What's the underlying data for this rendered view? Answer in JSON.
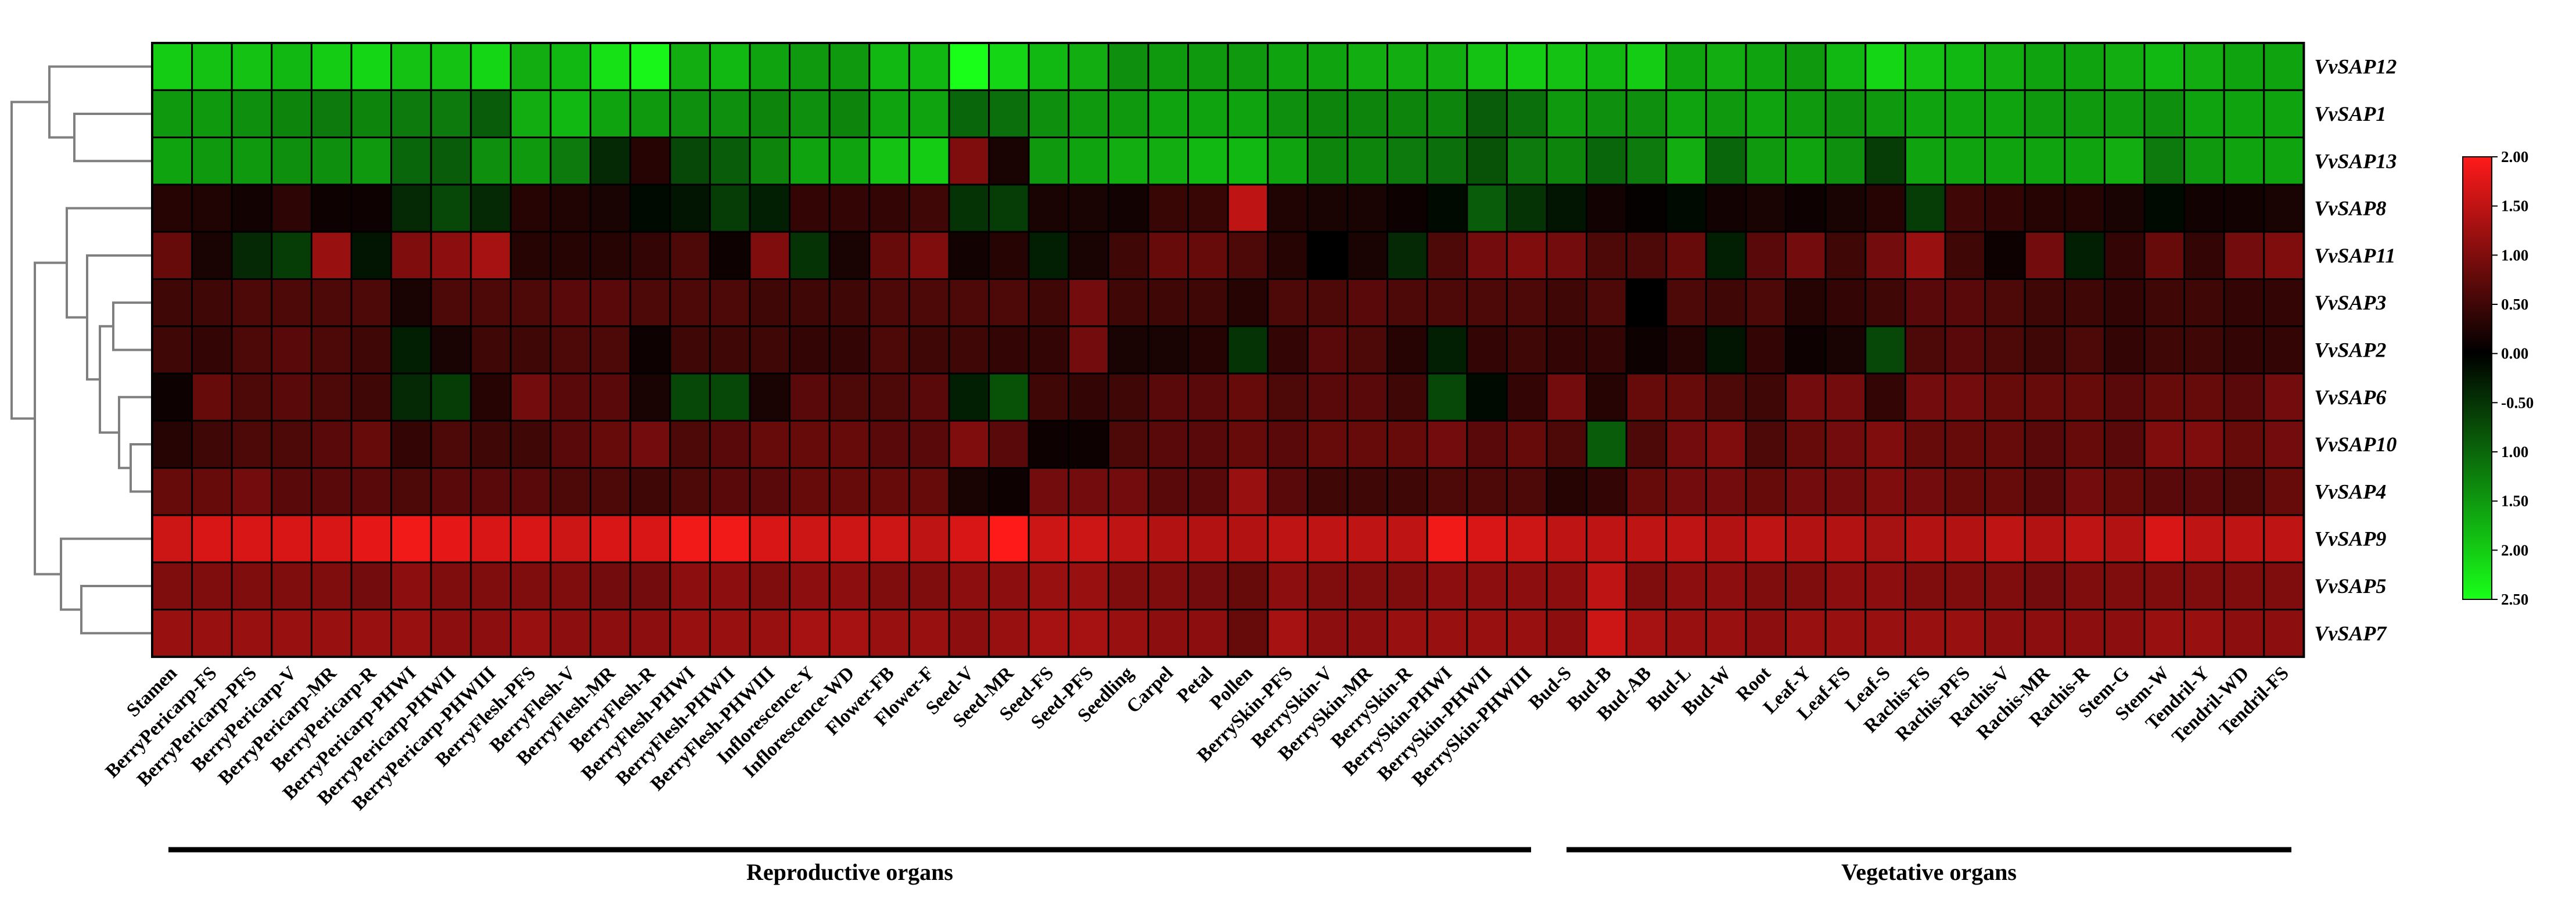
{
  "chart_data": {
    "type": "heatmap",
    "title": "",
    "rows": [
      "VvSAP12",
      "VvSAP1",
      "VvSAP13",
      "VvSAP8",
      "VvSAP11",
      "VvSAP3",
      "VvSAP2",
      "VvSAP6",
      "VvSAP10",
      "VvSAP4",
      "VvSAP9",
      "VvSAP5",
      "VvSAP7"
    ],
    "columns": [
      "Stamen",
      "BerryPericarp-FS",
      "BerryPericarp-PFS",
      "BerryPericarp-V",
      "BerryPericarp-MR",
      "BerryPericarp-R",
      "BerryPericarp-PHWI",
      "BerryPericarp-PHWII",
      "BerryPericarp-PHWIII",
      "BerryFlesh-PFS",
      "BerryFlesh-V",
      "BerryFlesh-MR",
      "BerryFlesh-R",
      "BerryFlesh-PHWI",
      "BerryFlesh-PHWII",
      "BerryFlesh-PHWIII",
      "Inflorescence-Y",
      "Inflorescence-WD",
      "Flower-FB",
      "Flower-F",
      "Seed-V",
      "Seed-MR",
      "Seed-FS",
      "Seed-PFS",
      "Seedling",
      "Carpel",
      "Petal",
      "Pollen",
      "BerrySkin-PFS",
      "BerrySkin-V",
      "BerrySkin-MR",
      "BerrySkin-R",
      "BerrySkin-PHWI",
      "BerrySkin-PHWII",
      "BerrySkin-PHWIII",
      "Bud-S",
      "Bud-B",
      "Bud-AB",
      "Bud-L",
      "Bud-W",
      "Root",
      "Leaf-Y",
      "Leaf-FS",
      "Leaf-S",
      "Rachis-FS",
      "Rachis-PFS",
      "Rachis-V",
      "Rachis-MR",
      "Rachis-R",
      "Stem-G",
      "Stem-W",
      "Tendril-Y",
      "Tendril-WD",
      "Tendril-FS"
    ],
    "values": [
      [
        -2.0,
        -1.9,
        -1.9,
        -1.8,
        -2.0,
        -2.1,
        -1.9,
        -1.9,
        -2.1,
        -1.7,
        -1.8,
        -2.2,
        -2.4,
        -1.7,
        -1.8,
        -1.6,
        -1.5,
        -1.5,
        -1.8,
        -1.8,
        -2.5,
        -2.1,
        -1.8,
        -1.7,
        -1.4,
        -1.5,
        -1.5,
        -1.5,
        -1.6,
        -1.6,
        -1.7,
        -1.7,
        -1.7,
        -1.9,
        -2.0,
        -1.9,
        -1.8,
        -2.0,
        -1.6,
        -1.7,
        -1.6,
        -1.5,
        -1.8,
        -2.1,
        -1.9,
        -1.8,
        -1.7,
        -1.6,
        -1.6,
        -1.7,
        -1.8,
        -1.7,
        -1.6,
        -1.6
      ],
      [
        -1.5,
        -1.5,
        -1.4,
        -1.3,
        -1.2,
        -1.3,
        -1.2,
        -1.2,
        -0.9,
        -1.7,
        -1.8,
        -1.6,
        -1.5,
        -1.4,
        -1.4,
        -1.3,
        -1.4,
        -1.3,
        -1.6,
        -1.6,
        -1.0,
        -1.1,
        -1.4,
        -1.5,
        -1.5,
        -1.6,
        -1.6,
        -1.6,
        -1.4,
        -1.3,
        -1.3,
        -1.3,
        -1.3,
        -0.9,
        -1.1,
        -1.5,
        -1.4,
        -1.4,
        -1.6,
        -1.5,
        -1.6,
        -1.5,
        -1.4,
        -1.5,
        -1.6,
        -1.6,
        -1.6,
        -1.5,
        -1.5,
        -1.5,
        -1.4,
        -1.6,
        -1.6,
        -1.6
      ],
      [
        -1.6,
        -1.5,
        -1.5,
        -1.4,
        -1.4,
        -1.5,
        -1.0,
        -0.9,
        -1.4,
        -1.5,
        -1.2,
        -0.4,
        0.3,
        -0.7,
        -0.9,
        -1.3,
        -1.6,
        -1.6,
        -1.9,
        -2.0,
        1.0,
        0.2,
        -1.5,
        -1.6,
        -1.7,
        -1.7,
        -1.8,
        -1.8,
        -1.6,
        -1.3,
        -1.3,
        -1.2,
        -1.1,
        -0.8,
        -1.2,
        -1.3,
        -1.0,
        -1.2,
        -1.7,
        -1.0,
        -1.5,
        -1.6,
        -1.4,
        -0.6,
        -1.6,
        -1.6,
        -1.6,
        -1.6,
        -1.6,
        -1.7,
        -1.2,
        -1.5,
        -1.6,
        -1.6
      ],
      [
        0.3,
        0.25,
        0.15,
        0.35,
        0.1,
        0.1,
        -0.4,
        -0.7,
        -0.4,
        0.3,
        0.25,
        0.2,
        -0.1,
        -0.2,
        -0.6,
        -0.3,
        0.4,
        0.4,
        0.4,
        0.5,
        -0.5,
        -0.6,
        0.2,
        0.2,
        0.15,
        0.45,
        0.45,
        1.5,
        0.25,
        0.2,
        0.2,
        0.1,
        -0.1,
        -0.9,
        -0.5,
        -0.2,
        0.15,
        0.05,
        -0.1,
        0.15,
        0.2,
        0.1,
        0.2,
        0.3,
        -0.6,
        0.5,
        0.4,
        0.3,
        0.3,
        0.2,
        -0.1,
        0.15,
        0.15,
        0.2
      ],
      [
        0.8,
        0.2,
        -0.4,
        -0.6,
        1.2,
        -0.2,
        1.0,
        1.1,
        1.3,
        0.3,
        0.3,
        0.3,
        0.4,
        0.6,
        0.1,
        1.0,
        -0.5,
        0.2,
        0.8,
        1.0,
        0.15,
        0.3,
        -0.3,
        0.2,
        0.5,
        0.8,
        0.8,
        0.6,
        0.3,
        0.0,
        0.2,
        -0.4,
        0.6,
        0.9,
        1.0,
        0.9,
        0.6,
        0.6,
        0.8,
        -0.3,
        0.7,
        0.9,
        0.5,
        0.9,
        1.2,
        0.5,
        0.1,
        0.9,
        -0.3,
        0.4,
        0.8,
        0.4,
        0.9,
        1.0
      ],
      [
        0.5,
        0.5,
        0.6,
        0.6,
        0.6,
        0.6,
        0.2,
        0.6,
        0.6,
        0.6,
        0.7,
        0.7,
        0.6,
        0.6,
        0.6,
        0.5,
        0.5,
        0.5,
        0.6,
        0.6,
        0.6,
        0.6,
        0.5,
        0.9,
        0.5,
        0.5,
        0.5,
        0.3,
        0.6,
        0.6,
        0.7,
        0.6,
        0.6,
        0.6,
        0.6,
        0.5,
        0.6,
        0.0,
        0.6,
        0.5,
        0.6,
        0.3,
        0.4,
        0.5,
        0.7,
        0.7,
        0.6,
        0.5,
        0.5,
        0.4,
        0.5,
        0.5,
        0.4,
        0.4
      ],
      [
        0.5,
        0.4,
        0.6,
        0.7,
        0.6,
        0.5,
        -0.3,
        0.2,
        0.5,
        0.5,
        0.6,
        0.6,
        0.1,
        0.5,
        0.5,
        0.5,
        0.4,
        0.4,
        0.6,
        0.5,
        0.5,
        0.4,
        0.4,
        0.9,
        0.2,
        0.2,
        0.3,
        -0.5,
        0.4,
        0.7,
        0.6,
        0.3,
        -0.3,
        0.4,
        0.5,
        0.4,
        0.4,
        0.1,
        0.3,
        -0.2,
        0.4,
        0.1,
        0.2,
        -0.7,
        0.6,
        0.7,
        0.6,
        0.5,
        0.6,
        0.4,
        0.5,
        0.5,
        0.4,
        0.4
      ],
      [
        0.1,
        0.8,
        0.6,
        0.7,
        0.6,
        0.5,
        -0.4,
        -0.6,
        0.3,
        0.9,
        0.7,
        0.7,
        0.2,
        -0.7,
        -0.7,
        0.2,
        0.7,
        0.6,
        0.6,
        0.7,
        -0.3,
        -0.8,
        0.5,
        0.4,
        0.5,
        0.7,
        0.7,
        0.8,
        0.6,
        0.7,
        0.7,
        0.5,
        -0.7,
        -0.1,
        0.4,
        0.9,
        0.3,
        0.8,
        0.8,
        0.6,
        0.5,
        0.9,
        0.9,
        0.4,
        0.9,
        0.9,
        0.8,
        0.8,
        0.8,
        0.7,
        0.8,
        0.8,
        0.7,
        0.9
      ],
      [
        0.3,
        0.5,
        0.6,
        0.6,
        0.7,
        0.8,
        0.4,
        0.6,
        0.5,
        0.5,
        0.7,
        0.8,
        0.9,
        0.6,
        0.7,
        0.8,
        0.8,
        0.8,
        0.7,
        0.7,
        1.0,
        0.7,
        0.1,
        0.1,
        0.6,
        0.7,
        0.7,
        0.8,
        0.7,
        0.8,
        0.8,
        0.8,
        0.9,
        0.7,
        0.8,
        0.6,
        -0.9,
        0.6,
        0.9,
        1.0,
        0.6,
        0.8,
        0.9,
        1.0,
        0.8,
        0.8,
        0.8,
        0.7,
        0.8,
        0.7,
        1.0,
        1.0,
        0.8,
        0.9
      ],
      [
        0.8,
        0.8,
        0.9,
        0.7,
        0.7,
        0.7,
        0.6,
        0.7,
        0.7,
        0.7,
        0.6,
        0.6,
        0.5,
        0.6,
        0.7,
        0.7,
        0.8,
        0.8,
        0.8,
        0.8,
        0.2,
        0.1,
        0.9,
        0.9,
        0.9,
        0.7,
        0.7,
        1.2,
        0.7,
        0.5,
        0.5,
        0.5,
        0.6,
        0.6,
        0.6,
        0.3,
        0.4,
        0.8,
        0.9,
        0.9,
        0.8,
        0.9,
        0.9,
        1.0,
        0.9,
        0.8,
        0.8,
        0.7,
        0.9,
        0.8,
        0.7,
        0.7,
        0.6,
        0.8
      ],
      [
        1.6,
        1.7,
        1.7,
        1.7,
        1.7,
        1.8,
        1.9,
        1.8,
        1.7,
        1.7,
        1.6,
        1.7,
        1.7,
        1.9,
        1.9,
        1.7,
        1.6,
        1.6,
        1.6,
        1.5,
        1.7,
        2.0,
        1.6,
        1.6,
        1.5,
        1.4,
        1.4,
        1.4,
        1.5,
        1.5,
        1.5,
        1.5,
        1.9,
        1.7,
        1.6,
        1.5,
        1.5,
        1.5,
        1.5,
        1.4,
        1.5,
        1.4,
        1.4,
        1.3,
        1.4,
        1.4,
        1.5,
        1.4,
        1.5,
        1.4,
        1.7,
        1.5,
        1.5,
        1.5
      ],
      [
        1.0,
        1.0,
        1.0,
        1.0,
        1.0,
        0.9,
        1.1,
        1.0,
        1.0,
        1.0,
        1.0,
        0.9,
        0.9,
        1.1,
        1.1,
        1.0,
        1.1,
        1.1,
        1.0,
        1.0,
        1.1,
        1.1,
        1.2,
        1.2,
        1.0,
        1.0,
        0.9,
        0.8,
        1.1,
        1.0,
        1.0,
        1.0,
        1.1,
        1.1,
        1.1,
        1.1,
        1.5,
        1.0,
        1.1,
        1.1,
        1.0,
        1.0,
        1.1,
        1.1,
        1.0,
        1.0,
        1.0,
        0.9,
        1.0,
        1.0,
        1.0,
        1.0,
        1.0,
        1.0
      ],
      [
        1.2,
        1.2,
        1.2,
        1.2,
        1.2,
        1.2,
        1.2,
        1.1,
        1.1,
        1.2,
        1.1,
        1.1,
        1.1,
        1.2,
        1.2,
        1.2,
        1.3,
        1.3,
        1.2,
        1.2,
        1.1,
        1.2,
        1.3,
        1.3,
        1.2,
        1.1,
        1.1,
        0.8,
        1.3,
        1.1,
        1.1,
        1.2,
        1.2,
        1.2,
        1.2,
        1.1,
        1.6,
        1.3,
        1.2,
        1.2,
        1.1,
        1.2,
        1.2,
        1.2,
        1.2,
        1.2,
        1.1,
        1.1,
        1.1,
        1.1,
        1.2,
        1.2,
        1.1,
        1.1
      ]
    ],
    "color_scale": {
      "positive_color": "#ff1a1a",
      "negative_color": "#19ff19",
      "zero_color": "#000000",
      "tick_labels": [
        "2.00",
        "1.50",
        "1.00",
        "0.50",
        "0.00",
        "-0.50",
        "1.00",
        "1.50",
        "2.00",
        "2.50"
      ],
      "min": -2.5,
      "max": 2.0
    },
    "groups": [
      {
        "label": "Reproductive organs",
        "from": "Stamen",
        "to": "BerrySkin-PHWIII"
      },
      {
        "label": "Vegetative organs",
        "from": "Bud-S",
        "to": "Tendril-FS"
      }
    ],
    "dendrogram": true,
    "legend_position": "right"
  }
}
